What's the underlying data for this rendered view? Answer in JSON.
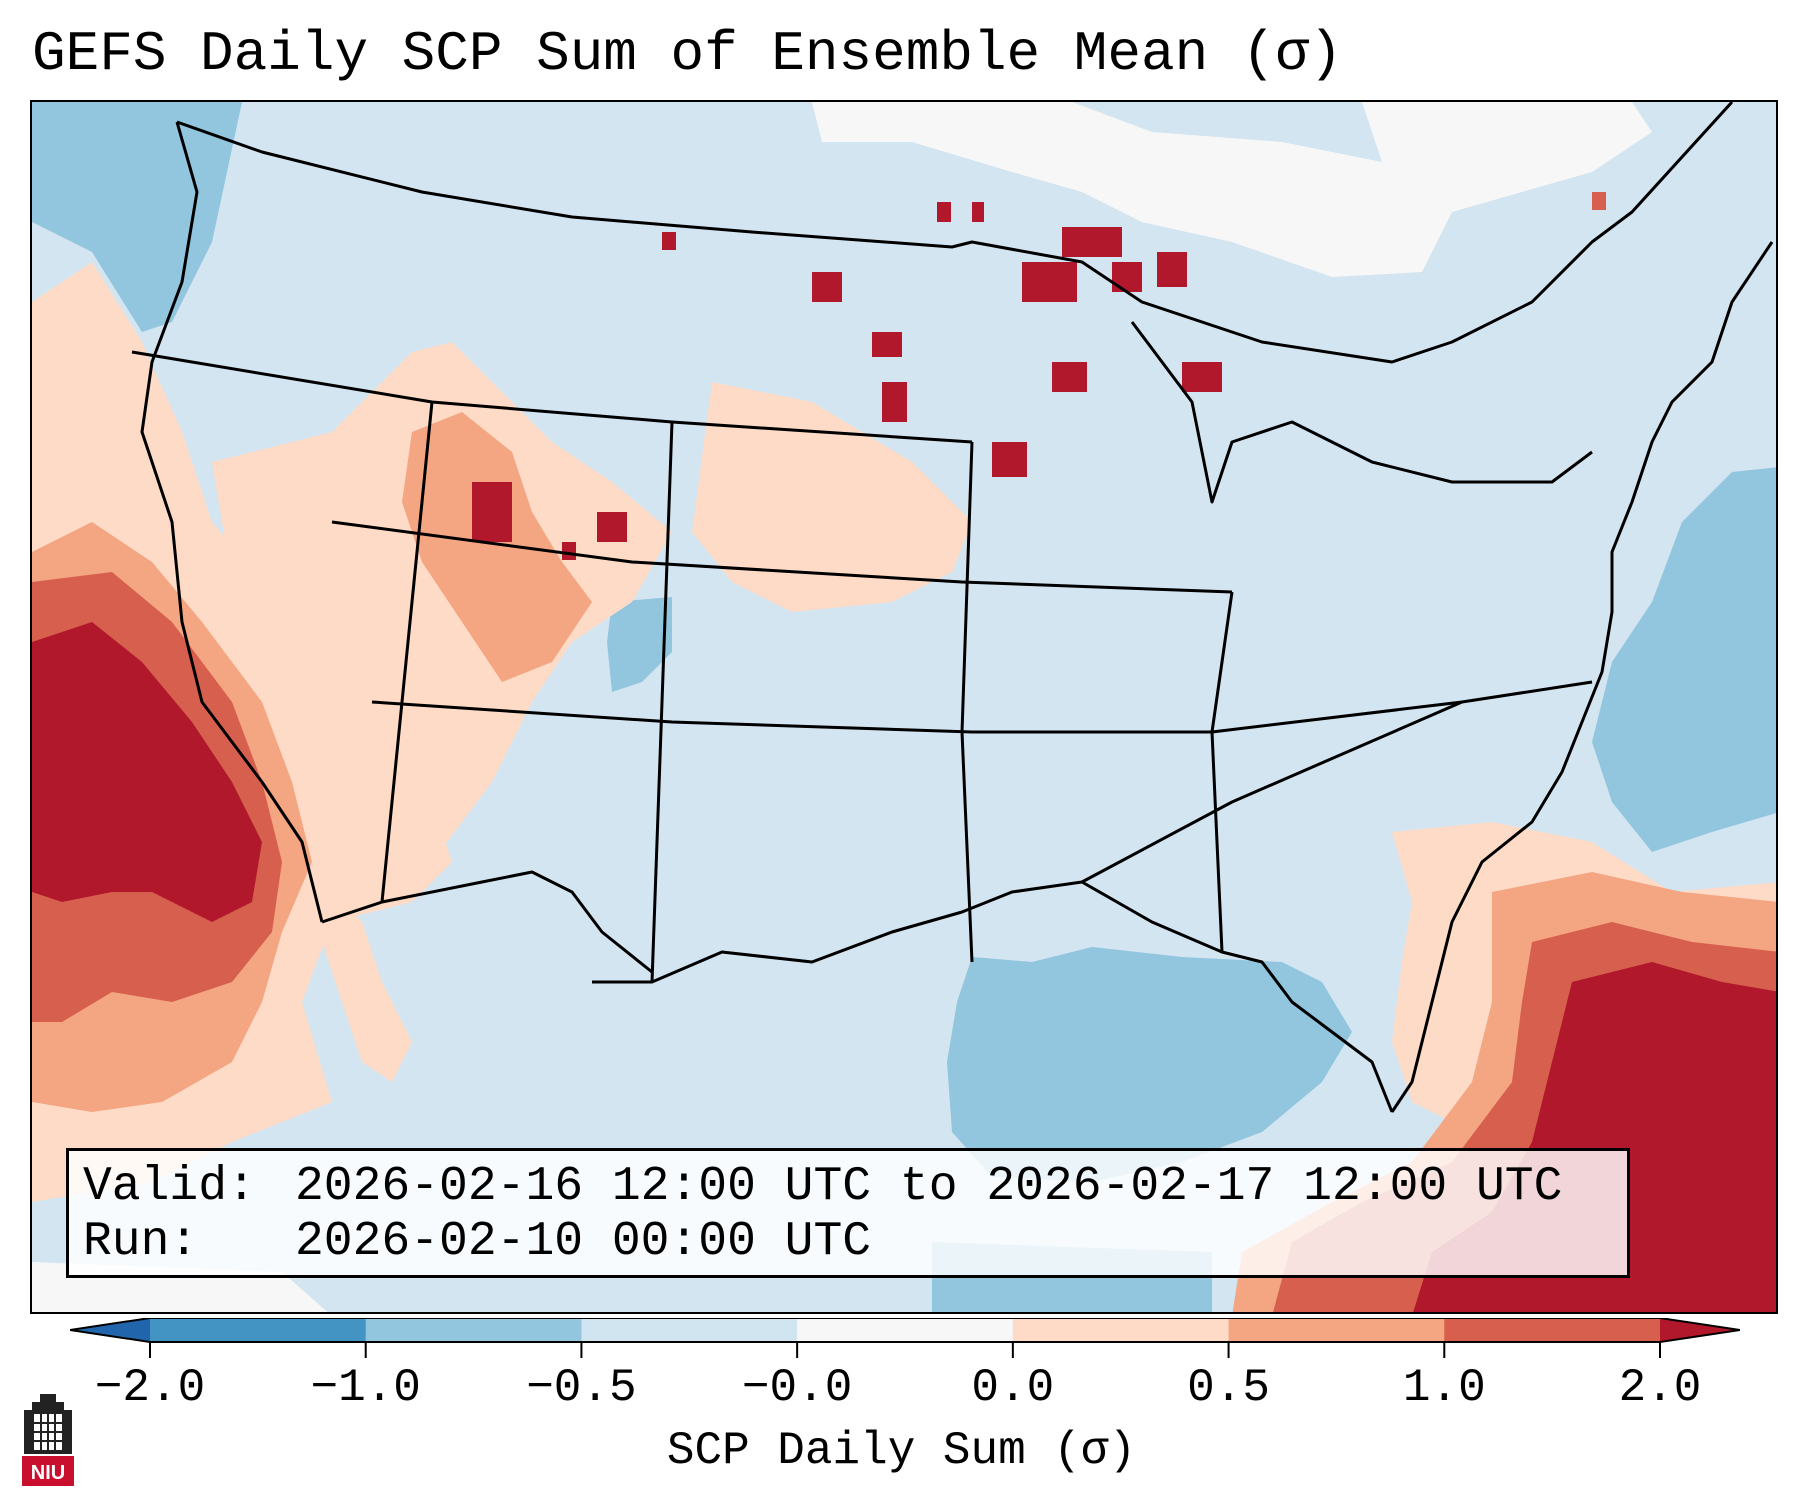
{
  "title": "GEFS Daily SCP Sum of Ensemble Mean (σ)",
  "info": {
    "valid_label": "Valid:",
    "valid_value": "2026-02-16 12:00 UTC to 2026-02-17 12:00 UTC",
    "run_label": "Run:",
    "run_value": "2026-02-10 00:00 UTC"
  },
  "colorbar": {
    "label": "SCP Daily Sum (σ)",
    "ticks": [
      "−2.0",
      "−1.0",
      "−0.5",
      "−0.0",
      "0.0",
      "0.5",
      "1.0",
      "2.0"
    ],
    "bins": [
      {
        "from": "-2.0",
        "to": "-1.0",
        "color": "#4393c3"
      },
      {
        "from": "-1.0",
        "to": "-0.5",
        "color": "#92c5de"
      },
      {
        "from": "-0.5",
        "to": "-0.0",
        "color": "#d1e5f0"
      },
      {
        "from": "-0.0",
        "to": "0.0",
        "color": "#f7f7f7"
      },
      {
        "from": "0.0",
        "to": "0.5",
        "color": "#fddbc7"
      },
      {
        "from": "0.5",
        "to": "1.0",
        "color": "#f4a582"
      },
      {
        "from": "1.0",
        "to": "2.0",
        "color": "#d6604d"
      }
    ],
    "under_color": "#2166ac",
    "over_color": "#b2182b",
    "extreme_color": "#b2182b"
  },
  "map": {
    "background_color": "#d3e5f0",
    "border_color": "#000000"
  },
  "logo": {
    "text": "NIU",
    "color": "#c8102e"
  }
}
